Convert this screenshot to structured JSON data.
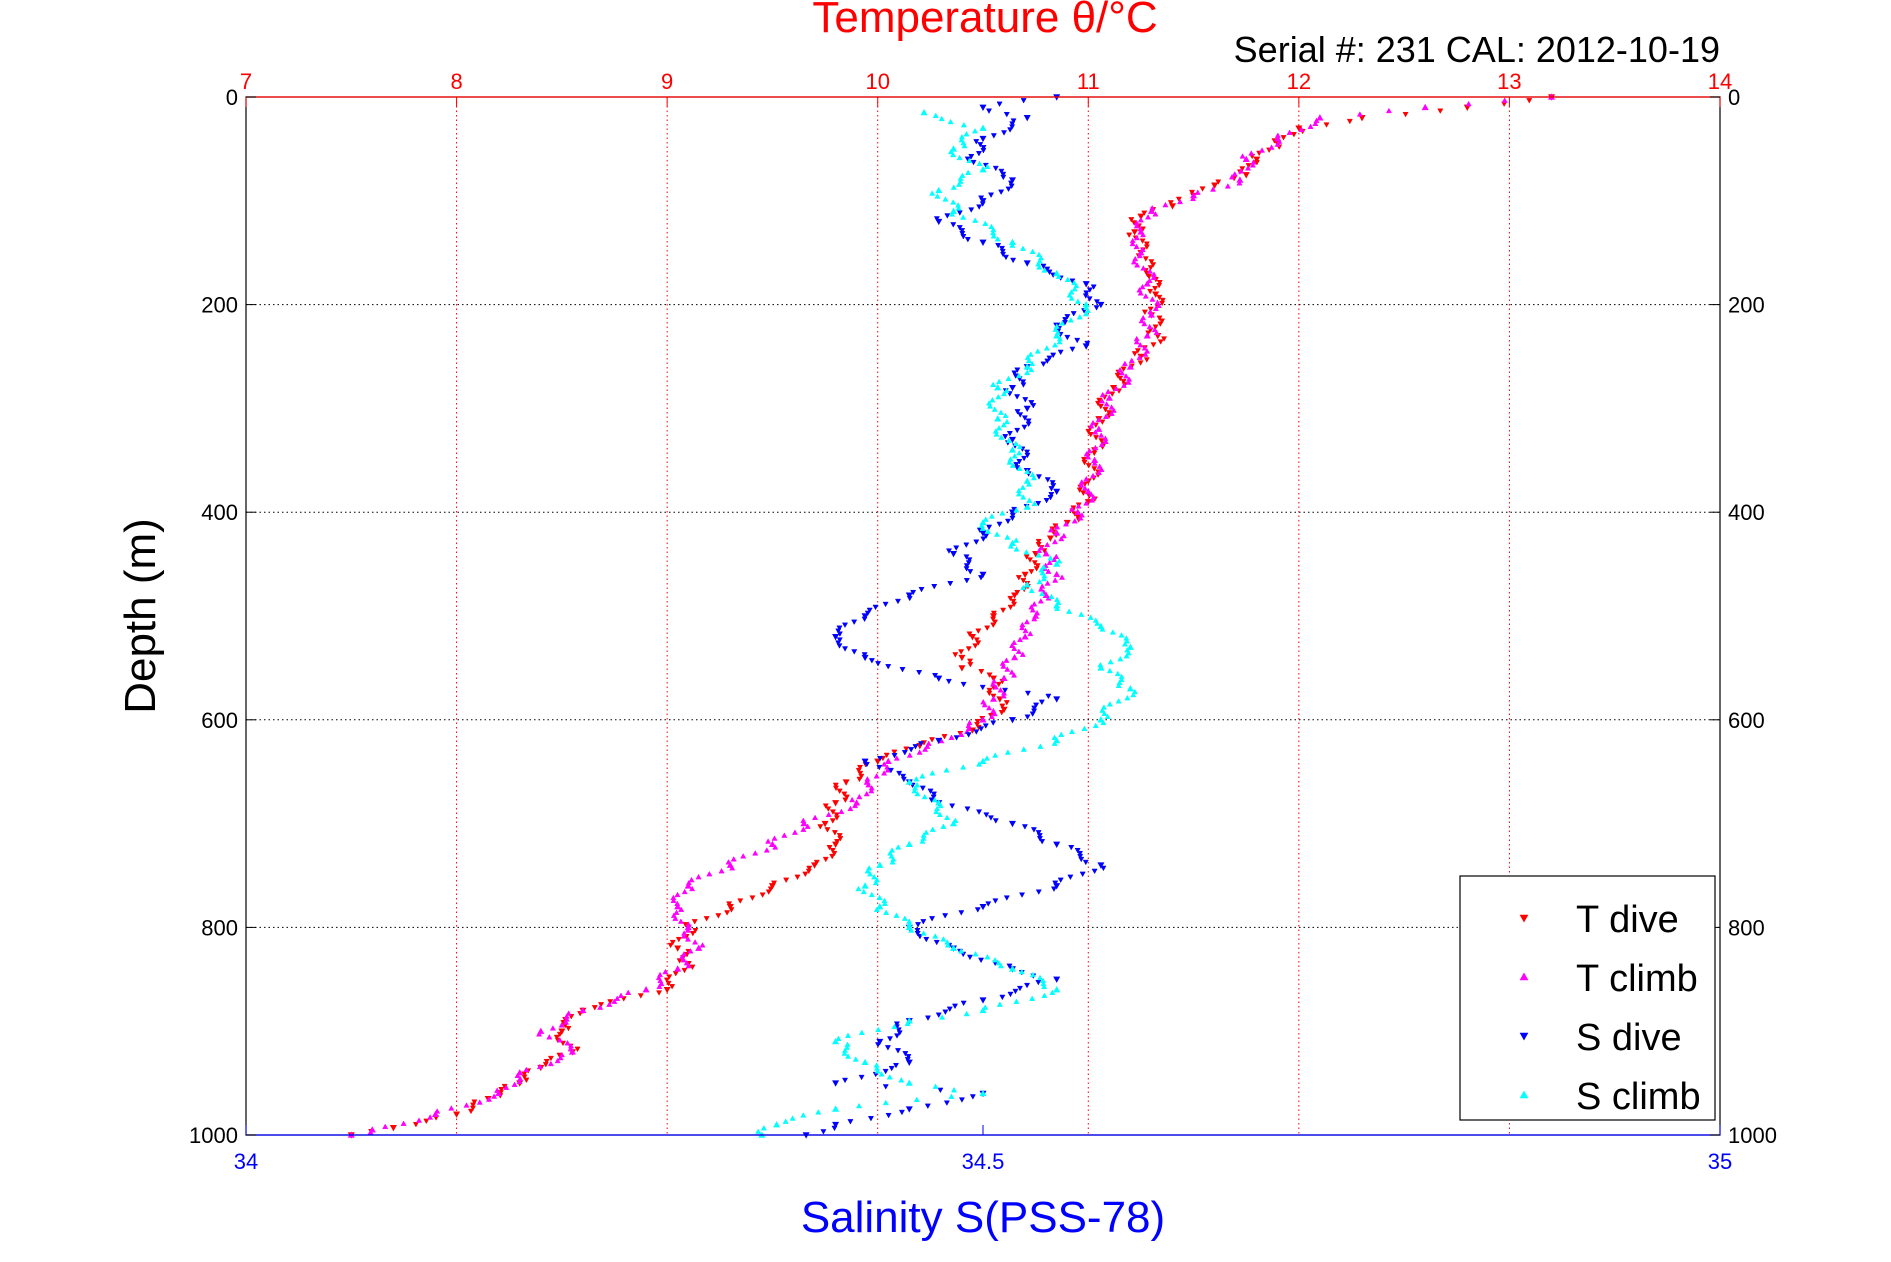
{
  "chart_data": {
    "type": "scatter",
    "title": "Temperature θ/°C",
    "subtitle": "Serial #: 231  CAL: 2012-10-19",
    "ylabel": "Depth (m)",
    "xlabel_bottom": "Salinity S(PSS-78)",
    "x_top": {
      "label": "Temperature θ/°C",
      "range": [
        7,
        14
      ],
      "ticks": [
        "7",
        "8",
        "9",
        "10",
        "11",
        "12",
        "13",
        "14"
      ],
      "color": "#ff0000",
      "grid": true
    },
    "x_bottom": {
      "label": "Salinity S(PSS-78)",
      "range": [
        34,
        35
      ],
      "ticks": [
        "34",
        "34.5",
        "35"
      ],
      "color": "#0000ff"
    },
    "y": {
      "range": [
        0,
        1000
      ],
      "reversed": true,
      "ticks": [
        "0",
        "200",
        "400",
        "600",
        "800",
        "1000"
      ],
      "grid": true
    },
    "legend": {
      "placement": "bottom-right",
      "entries": [
        "T dive",
        "T climb",
        "S dive",
        "S climb"
      ]
    },
    "series": [
      {
        "name": "T dive",
        "axis": "temperature",
        "color": "#ff0000",
        "marker": "triangle-down",
        "points": [
          [
            13.2,
            0
          ],
          [
            12.8,
            10
          ],
          [
            12.3,
            20
          ],
          [
            12.0,
            30
          ],
          [
            11.9,
            45
          ],
          [
            11.8,
            60
          ],
          [
            11.75,
            75
          ],
          [
            11.6,
            85
          ],
          [
            11.5,
            95
          ],
          [
            11.4,
            105
          ],
          [
            11.25,
            115
          ],
          [
            11.22,
            130
          ],
          [
            11.25,
            150
          ],
          [
            11.28,
            170
          ],
          [
            11.32,
            190
          ],
          [
            11.3,
            210
          ],
          [
            11.33,
            230
          ],
          [
            11.25,
            250
          ],
          [
            11.12,
            280
          ],
          [
            11.05,
            310
          ],
          [
            11.03,
            340
          ],
          [
            11.0,
            370
          ],
          [
            11.0,
            390
          ],
          [
            10.9,
            410
          ],
          [
            10.82,
            425
          ],
          [
            10.75,
            440
          ],
          [
            10.7,
            460
          ],
          [
            10.65,
            480
          ],
          [
            10.55,
            500
          ],
          [
            10.45,
            520
          ],
          [
            10.4,
            540
          ],
          [
            10.4,
            550
          ],
          [
            10.55,
            560
          ],
          [
            10.58,
            580
          ],
          [
            10.6,
            590
          ],
          [
            10.45,
            610
          ],
          [
            10.2,
            625
          ],
          [
            10.0,
            640
          ],
          [
            9.85,
            660
          ],
          [
            9.8,
            680
          ],
          [
            9.75,
            700
          ],
          [
            9.8,
            720
          ],
          [
            9.7,
            740
          ],
          [
            9.5,
            760
          ],
          [
            9.3,
            780
          ],
          [
            9.1,
            800
          ],
          [
            9.05,
            820
          ],
          [
            9.1,
            835
          ],
          [
            9.0,
            860
          ],
          [
            8.6,
            880
          ],
          [
            8.5,
            900
          ],
          [
            8.55,
            920
          ],
          [
            8.4,
            935
          ],
          [
            8.3,
            950
          ],
          [
            8.15,
            965
          ],
          [
            8.0,
            980
          ],
          [
            7.7,
            993
          ],
          [
            7.5,
            1000
          ]
        ]
      },
      {
        "name": "T climb",
        "axis": "temperature",
        "color": "#ff00ff",
        "marker": "triangle-up",
        "points": [
          [
            13.2,
            0
          ],
          [
            12.6,
            10
          ],
          [
            12.1,
            20
          ],
          [
            11.9,
            40
          ],
          [
            11.75,
            60
          ],
          [
            11.72,
            80
          ],
          [
            11.5,
            95
          ],
          [
            11.3,
            110
          ],
          [
            11.25,
            130
          ],
          [
            11.25,
            150
          ],
          [
            11.28,
            180
          ],
          [
            11.3,
            210
          ],
          [
            11.28,
            230
          ],
          [
            11.2,
            260
          ],
          [
            11.1,
            290
          ],
          [
            11.05,
            320
          ],
          [
            11.03,
            350
          ],
          [
            11.0,
            380
          ],
          [
            10.95,
            400
          ],
          [
            10.85,
            420
          ],
          [
            10.8,
            440
          ],
          [
            10.85,
            460
          ],
          [
            10.8,
            480
          ],
          [
            10.75,
            500
          ],
          [
            10.7,
            520
          ],
          [
            10.65,
            540
          ],
          [
            10.6,
            560
          ],
          [
            10.55,
            580
          ],
          [
            10.5,
            600
          ],
          [
            10.3,
            620
          ],
          [
            10.05,
            640
          ],
          [
            9.95,
            660
          ],
          [
            9.9,
            680
          ],
          [
            9.65,
            700
          ],
          [
            9.5,
            720
          ],
          [
            9.3,
            740
          ],
          [
            9.1,
            760
          ],
          [
            9.05,
            780
          ],
          [
            9.1,
            800
          ],
          [
            9.15,
            820
          ],
          [
            9.05,
            840
          ],
          [
            8.9,
            860
          ],
          [
            8.6,
            880
          ],
          [
            8.4,
            900
          ],
          [
            8.55,
            920
          ],
          [
            8.3,
            940
          ],
          [
            8.2,
            960
          ],
          [
            7.9,
            980
          ],
          [
            7.6,
            995
          ],
          [
            7.5,
            1000
          ]
        ]
      },
      {
        "name": "S dive",
        "axis": "salinity",
        "color": "#0000ff",
        "marker": "triangle-down",
        "points": [
          [
            34.55,
            0
          ],
          [
            34.5,
            10
          ],
          [
            34.53,
            20
          ],
          [
            34.5,
            40
          ],
          [
            34.49,
            60
          ],
          [
            34.52,
            80
          ],
          [
            34.5,
            100
          ],
          [
            34.47,
            120
          ],
          [
            34.5,
            140
          ],
          [
            34.53,
            160
          ],
          [
            34.57,
            180
          ],
          [
            34.58,
            200
          ],
          [
            34.55,
            220
          ],
          [
            34.57,
            240
          ],
          [
            34.53,
            260
          ],
          [
            34.52,
            280
          ],
          [
            34.53,
            300
          ],
          [
            34.52,
            330
          ],
          [
            34.53,
            360
          ],
          [
            34.55,
            380
          ],
          [
            34.52,
            400
          ],
          [
            34.5,
            420
          ],
          [
            34.48,
            440
          ],
          [
            34.5,
            460
          ],
          [
            34.45,
            480
          ],
          [
            34.42,
            500
          ],
          [
            34.4,
            520
          ],
          [
            34.42,
            540
          ],
          [
            34.47,
            560
          ],
          [
            34.55,
            580
          ],
          [
            34.52,
            600
          ],
          [
            34.47,
            620
          ],
          [
            34.42,
            640
          ],
          [
            34.45,
            660
          ],
          [
            34.47,
            680
          ],
          [
            34.52,
            700
          ],
          [
            34.55,
            720
          ],
          [
            34.58,
            740
          ],
          [
            34.55,
            760
          ],
          [
            34.5,
            780
          ],
          [
            34.45,
            800
          ],
          [
            34.48,
            820
          ],
          [
            34.52,
            840
          ],
          [
            34.55,
            850
          ],
          [
            34.5,
            870
          ],
          [
            34.45,
            890
          ],
          [
            34.43,
            910
          ],
          [
            34.45,
            930
          ],
          [
            34.4,
            950
          ],
          [
            34.5,
            960
          ],
          [
            34.45,
            975
          ],
          [
            34.4,
            990
          ],
          [
            34.38,
            1000
          ]
        ]
      },
      {
        "name": "S climb",
        "axis": "salinity",
        "color": "#00ffff",
        "marker": "triangle-up",
        "points": [
          [
            34.46,
            15
          ],
          [
            34.5,
            30
          ],
          [
            34.48,
            50
          ],
          [
            34.5,
            70
          ],
          [
            34.47,
            90
          ],
          [
            34.48,
            110
          ],
          [
            34.52,
            140
          ],
          [
            34.55,
            170
          ],
          [
            34.57,
            200
          ],
          [
            34.55,
            230
          ],
          [
            34.53,
            260
          ],
          [
            34.51,
            280
          ],
          [
            34.51,
            310
          ],
          [
            34.52,
            340
          ],
          [
            34.53,
            370
          ],
          [
            34.53,
            395
          ],
          [
            34.5,
            410
          ],
          [
            34.52,
            430
          ],
          [
            34.55,
            450
          ],
          [
            34.53,
            470
          ],
          [
            34.55,
            490
          ],
          [
            34.58,
            510
          ],
          [
            34.6,
            530
          ],
          [
            34.58,
            550
          ],
          [
            34.6,
            570
          ],
          [
            34.58,
            600
          ],
          [
            34.55,
            620
          ],
          [
            34.5,
            640
          ],
          [
            34.45,
            660
          ],
          [
            34.47,
            680
          ],
          [
            34.48,
            700
          ],
          [
            34.45,
            720
          ],
          [
            34.43,
            740
          ],
          [
            34.42,
            760
          ],
          [
            34.43,
            780
          ],
          [
            34.45,
            800
          ],
          [
            34.48,
            820
          ],
          [
            34.52,
            840
          ],
          [
            34.55,
            860
          ],
          [
            34.5,
            880
          ],
          [
            34.45,
            890
          ],
          [
            34.4,
            910
          ],
          [
            34.42,
            930
          ],
          [
            34.45,
            950
          ],
          [
            34.5,
            960
          ],
          [
            34.4,
            975
          ],
          [
            34.36,
            990
          ],
          [
            34.35,
            1000
          ]
        ]
      }
    ]
  }
}
